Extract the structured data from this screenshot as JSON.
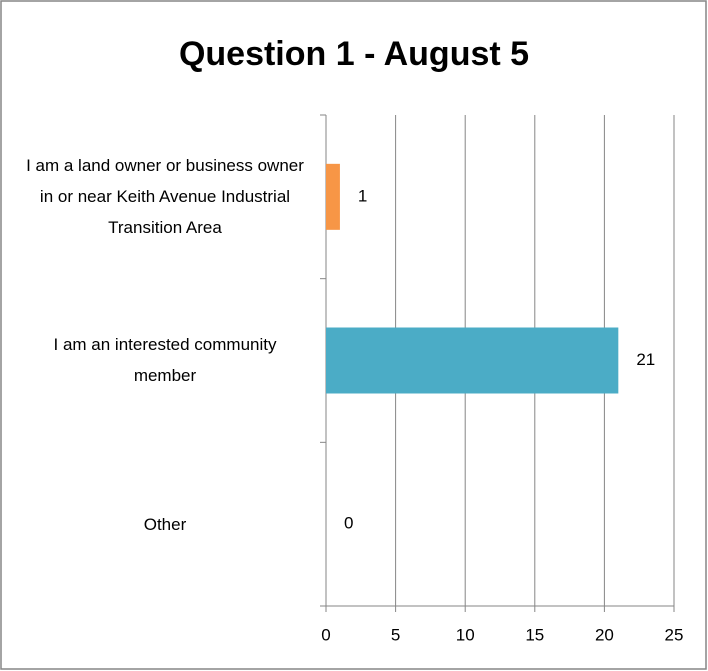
{
  "chart_data": {
    "type": "bar",
    "orientation": "horizontal",
    "title": "Question 1 - August 5",
    "categories": [
      "I am a land owner or business owner in or near Keith Avenue Industrial Transition Area",
      "I am an interested community member",
      "Other"
    ],
    "values": [
      1,
      21,
      0
    ],
    "colors": [
      "#f79646",
      "#4bacc6",
      null
    ],
    "xlim": [
      0,
      25
    ],
    "xticks": [
      0,
      5,
      10,
      15,
      20,
      25
    ],
    "grid": true
  }
}
